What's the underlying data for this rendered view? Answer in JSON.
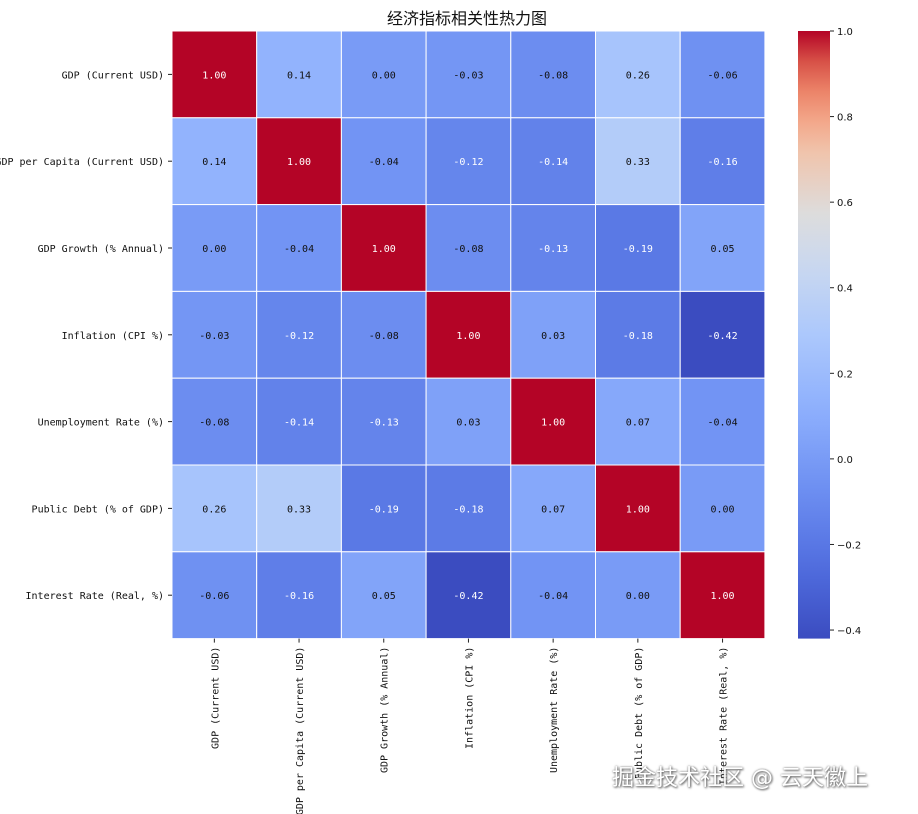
{
  "chart_data": {
    "type": "heatmap",
    "title": "经济指标相关性热力图",
    "labels": [
      "GDP (Current USD)",
      "GDP per Capita (Current USD)",
      "GDP Growth (% Annual)",
      "Inflation (CPI %)",
      "Unemployment Rate (%)",
      "Public Debt (% of GDP)",
      "Interest Rate (Real, %)"
    ],
    "matrix": [
      [
        1.0,
        0.14,
        0.0,
        -0.03,
        -0.08,
        0.26,
        -0.06
      ],
      [
        0.14,
        1.0,
        -0.04,
        -0.12,
        -0.14,
        0.33,
        -0.16
      ],
      [
        0.0,
        -0.04,
        1.0,
        -0.08,
        -0.13,
        -0.19,
        0.05
      ],
      [
        -0.03,
        -0.12,
        -0.08,
        1.0,
        0.03,
        -0.18,
        -0.42
      ],
      [
        -0.08,
        -0.14,
        -0.13,
        0.03,
        1.0,
        0.07,
        -0.04
      ],
      [
        0.26,
        0.33,
        -0.19,
        -0.18,
        0.07,
        1.0,
        -0.0
      ],
      [
        -0.06,
        -0.16,
        0.05,
        -0.42,
        -0.04,
        -0.0,
        1.0
      ]
    ],
    "colorscale": "coolwarm",
    "vmin": -0.42,
    "vmax": 1.0,
    "colorbar_ticks": [
      "1.0",
      "0.8",
      "0.6",
      "0.4",
      "0.2",
      "0.0",
      "−0.2",
      "−0.4"
    ],
    "colorbar_tick_values": [
      1.0,
      0.8,
      0.6,
      0.4,
      0.2,
      0.0,
      -0.2,
      -0.4
    ]
  },
  "watermark": "掘金技术社区 @ 云天徽上"
}
